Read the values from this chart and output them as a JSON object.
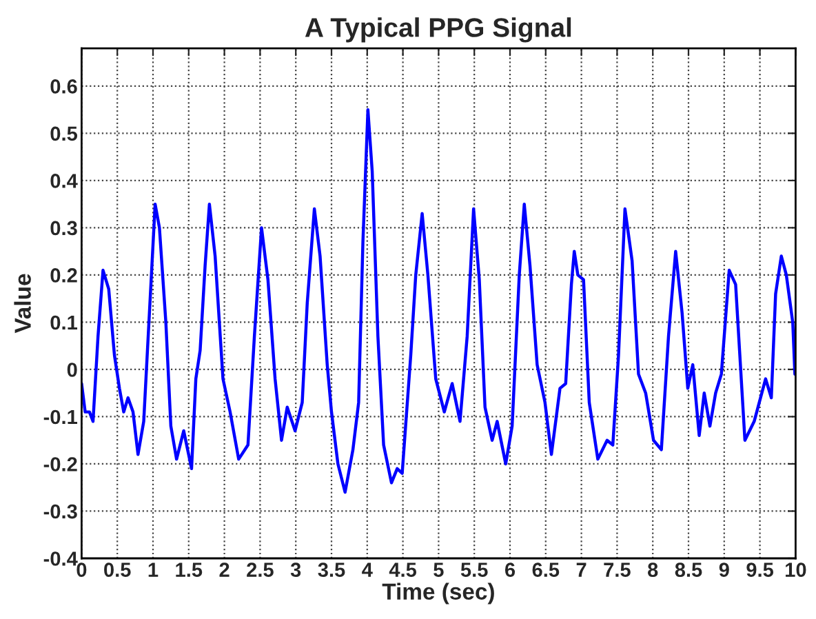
{
  "chart_data": {
    "type": "line",
    "title": "A Typical PPG Signal",
    "xlabel": "Time (sec)",
    "ylabel": "Value",
    "xlim": [
      0,
      10
    ],
    "ylim": [
      -0.4,
      0.68
    ],
    "xticks": [
      0,
      0.5,
      1,
      1.5,
      2,
      2.5,
      3,
      3.5,
      4,
      4.5,
      5,
      5.5,
      6,
      6.5,
      7,
      7.5,
      8,
      8.5,
      9,
      9.5,
      10
    ],
    "yticks": [
      -0.4,
      -0.3,
      -0.2,
      -0.1,
      0,
      0.1,
      0.2,
      0.3,
      0.4,
      0.5,
      0.6
    ],
    "grid": true,
    "legend": false,
    "marker": "none",
    "line_style": "solid",
    "series": [
      {
        "color": "#0000ff",
        "x": [
          0,
          0.05,
          0.11,
          0.16,
          0.23,
          0.3,
          0.38,
          0.46,
          0.53,
          0.59,
          0.65,
          0.72,
          0.79,
          0.87,
          0.95,
          1.03,
          1.09,
          1.18,
          1.25,
          1.33,
          1.43,
          1.54,
          1.6,
          1.66,
          1.73,
          1.79,
          1.87,
          1.98,
          2.08,
          2.2,
          2.33,
          2.42,
          2.52,
          2.61,
          2.71,
          2.8,
          2.88,
          2.99,
          3.09,
          3.16,
          3.26,
          3.34,
          3.44,
          3.5,
          3.59,
          3.69,
          3.8,
          3.88,
          3.94,
          4.01,
          4.07,
          4.15,
          4.23,
          4.34,
          4.42,
          4.49,
          4.61,
          4.68,
          4.77,
          4.85,
          4.96,
          5.08,
          5.19,
          5.3,
          5.4,
          5.49,
          5.57,
          5.65,
          5.75,
          5.82,
          5.94,
          6.03,
          6.13,
          6.2,
          6.28,
          6.38,
          6.49,
          6.58,
          6.7,
          6.78,
          6.86,
          6.9,
          6.95,
          7.03,
          7.11,
          7.23,
          7.36,
          7.44,
          7.52,
          7.61,
          7.71,
          7.8,
          7.9,
          8.01,
          8.12,
          8.22,
          8.32,
          8.41,
          8.49,
          8.56,
          8.65,
          8.72,
          8.8,
          8.88,
          8.96,
          9.07,
          9.16,
          9.29,
          9.42,
          9.58,
          9.66,
          9.72,
          9.8,
          9.87,
          9.96,
          9.99
        ],
        "values": [
          -0.03,
          -0.09,
          -0.09,
          -0.11,
          0.07,
          0.21,
          0.17,
          0.03,
          -0.04,
          -0.09,
          -0.06,
          -0.09,
          -0.18,
          -0.11,
          0.12,
          0.35,
          0.3,
          0.1,
          -0.12,
          -0.19,
          -0.13,
          -0.21,
          -0.02,
          0.04,
          0.22,
          0.35,
          0.24,
          -0.02,
          -0.09,
          -0.19,
          -0.16,
          0.07,
          0.3,
          0.19,
          -0.02,
          -0.15,
          -0.08,
          -0.13,
          -0.07,
          0.14,
          0.34,
          0.24,
          0.01,
          -0.09,
          -0.2,
          -0.26,
          -0.17,
          -0.07,
          0.27,
          0.55,
          0.42,
          0.07,
          -0.16,
          -0.24,
          -0.21,
          -0.22,
          0.03,
          0.2,
          0.33,
          0.2,
          -0.02,
          -0.09,
          -0.03,
          -0.11,
          0.07,
          0.34,
          0.19,
          -0.08,
          -0.15,
          -0.11,
          -0.2,
          -0.12,
          0.2,
          0.35,
          0.22,
          0.01,
          -0.07,
          -0.18,
          -0.04,
          -0.03,
          0.18,
          0.25,
          0.2,
          0.19,
          -0.07,
          -0.19,
          -0.15,
          -0.16,
          0.03,
          0.34,
          0.23,
          -0.01,
          -0.05,
          -0.15,
          -0.17,
          0.07,
          0.25,
          0.12,
          -0.04,
          0.01,
          -0.14,
          -0.05,
          -0.12,
          -0.05,
          -0.01,
          0.21,
          0.18,
          -0.15,
          -0.11,
          -0.02,
          -0.06,
          0.16,
          0.24,
          0.2,
          0.1,
          -0.01
        ]
      }
    ]
  }
}
